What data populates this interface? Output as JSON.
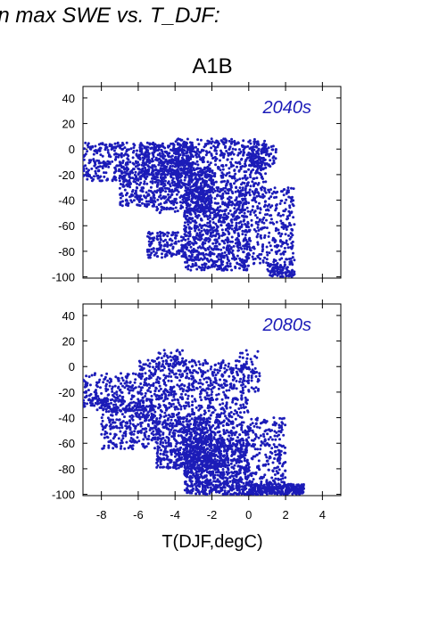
{
  "header": {
    "title": "in max SWE vs. T_DJF:"
  },
  "chart_data": {
    "type": "scatter",
    "scenario": "A1B",
    "xlabel": "T(DJF,degC)",
    "xlim": [
      -9,
      5
    ],
    "xticks": [
      -8,
      -6,
      -4,
      -2,
      0,
      2,
      4
    ],
    "ylim": [
      -101,
      49
    ],
    "yticks": [
      -100,
      -80,
      -60,
      -40,
      -20,
      0,
      20,
      40
    ],
    "grid": false,
    "point_color": "#1c1cb8",
    "panels": [
      {
        "label": "2040s",
        "clusters": [
          {
            "x": [
              -9,
              -6
            ],
            "y": [
              -25,
              5
            ],
            "n": 260
          },
          {
            "x": [
              -7,
              -5
            ],
            "y": [
              -45,
              -15
            ],
            "n": 200
          },
          {
            "x": [
              -6,
              -3
            ],
            "y": [
              -20,
              5
            ],
            "n": 420
          },
          {
            "x": [
              -5,
              -2
            ],
            "y": [
              -50,
              -15
            ],
            "n": 380
          },
          {
            "x": [
              -3.5,
              0
            ],
            "y": [
              -95,
              -30
            ],
            "n": 900
          },
          {
            "x": [
              -4,
              1
            ],
            "y": [
              -30,
              8
            ],
            "n": 500
          },
          {
            "x": [
              -5.5,
              -3.5
            ],
            "y": [
              -85,
              -65
            ],
            "n": 150
          },
          {
            "x": [
              0,
              2.5
            ],
            "y": [
              -90,
              -30
            ],
            "n": 300
          },
          {
            "x": [
              1,
              2.5
            ],
            "y": [
              -100,
              -90
            ],
            "n": 90
          },
          {
            "x": [
              0,
              1.5
            ],
            "y": [
              -15,
              5
            ],
            "n": 90
          }
        ]
      },
      {
        "label": "2080s",
        "clusters": [
          {
            "x": [
              -9,
              -6
            ],
            "y": [
              -35,
              -5
            ],
            "n": 220
          },
          {
            "x": [
              -8,
              -5
            ],
            "y": [
              -65,
              -25
            ],
            "n": 320
          },
          {
            "x": [
              -6,
              -3
            ],
            "y": [
              -40,
              5
            ],
            "n": 380
          },
          {
            "x": [
              -5,
              -2
            ],
            "y": [
              -80,
              -40
            ],
            "n": 480
          },
          {
            "x": [
              -3.5,
              0
            ],
            "y": [
              -100,
              -55
            ],
            "n": 950
          },
          {
            "x": [
              -3,
              0
            ],
            "y": [
              -55,
              5
            ],
            "n": 420
          },
          {
            "x": [
              0,
              3
            ],
            "y": [
              -100,
              -92
            ],
            "n": 300
          },
          {
            "x": [
              0,
              2
            ],
            "y": [
              -92,
              -40
            ],
            "n": 230
          },
          {
            "x": [
              -0.5,
              0.6
            ],
            "y": [
              -20,
              13
            ],
            "n": 60
          },
          {
            "x": [
              -5,
              -3.5
            ],
            "y": [
              0,
              13
            ],
            "n": 40
          }
        ]
      }
    ]
  }
}
